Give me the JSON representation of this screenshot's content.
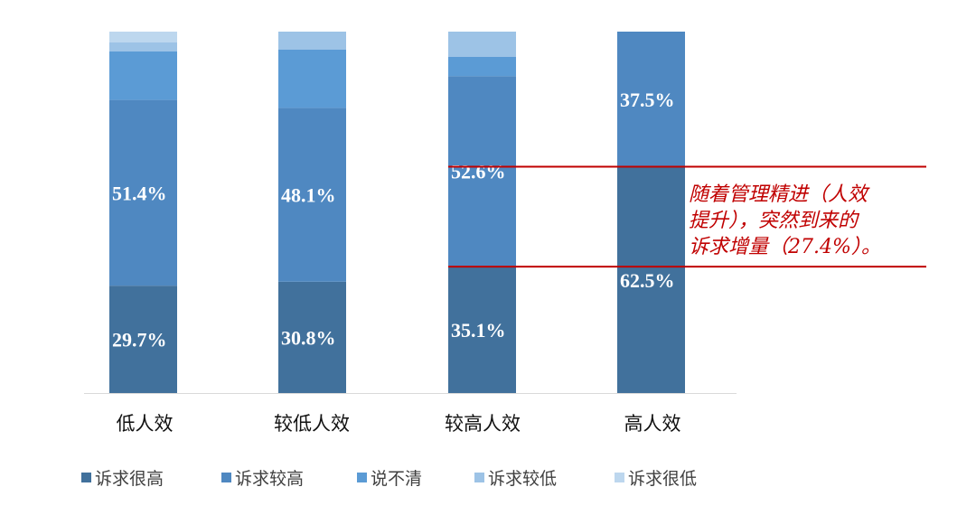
{
  "chart_data": {
    "type": "bar",
    "stacked": true,
    "categories": [
      "低人效",
      "较低人效",
      "较高人效",
      "高人效"
    ],
    "ylim": [
      0,
      100
    ],
    "series": [
      {
        "name": "诉求很高",
        "color": "#41719c",
        "values": [
          29.7,
          30.8,
          35.1,
          62.5
        ]
      },
      {
        "name": "诉求较高",
        "color": "#4f88c1",
        "values": [
          51.4,
          48.1,
          52.6,
          37.5
        ]
      },
      {
        "name": "说不清",
        "color": "#5b9bd5",
        "values": [
          13.4,
          16.1,
          5.3,
          0
        ]
      },
      {
        "name": "诉求较低",
        "color": "#9dc3e6",
        "values": [
          2.5,
          5.0,
          7.0,
          0
        ]
      },
      {
        "name": "诉求很低",
        "color": "#bdd7ee",
        "values": [
          3.0,
          0,
          0,
          0
        ]
      }
    ],
    "data_labels": [
      {
        "category": "低人效",
        "series": "诉求很高",
        "text": "29.7%"
      },
      {
        "category": "较低人效",
        "series": "诉求很高",
        "text": "30.8%"
      },
      {
        "category": "较高人效",
        "series": "诉求很高",
        "text": "35.1%"
      },
      {
        "category": "高人效",
        "series": "诉求很高",
        "text": "62.5%"
      },
      {
        "category": "低人效",
        "series": "诉求较高",
        "text": "51.4%"
      },
      {
        "category": "较低人效",
        "series": "诉求较高",
        "text": "48.1%"
      },
      {
        "category": "较高人效",
        "series": "诉求较高",
        "text": "52.6%"
      },
      {
        "category": "高人效",
        "series": "诉求较高",
        "text": "37.5%"
      }
    ],
    "annotation": {
      "lines": [
        "随着管理精进（人效",
        "提升），突然到来的",
        "诉求增量（27.4%）。"
      ],
      "color": "#c00000",
      "band": [
        35.1,
        62.5
      ]
    },
    "legend_position": "bottom",
    "grid": false
  }
}
